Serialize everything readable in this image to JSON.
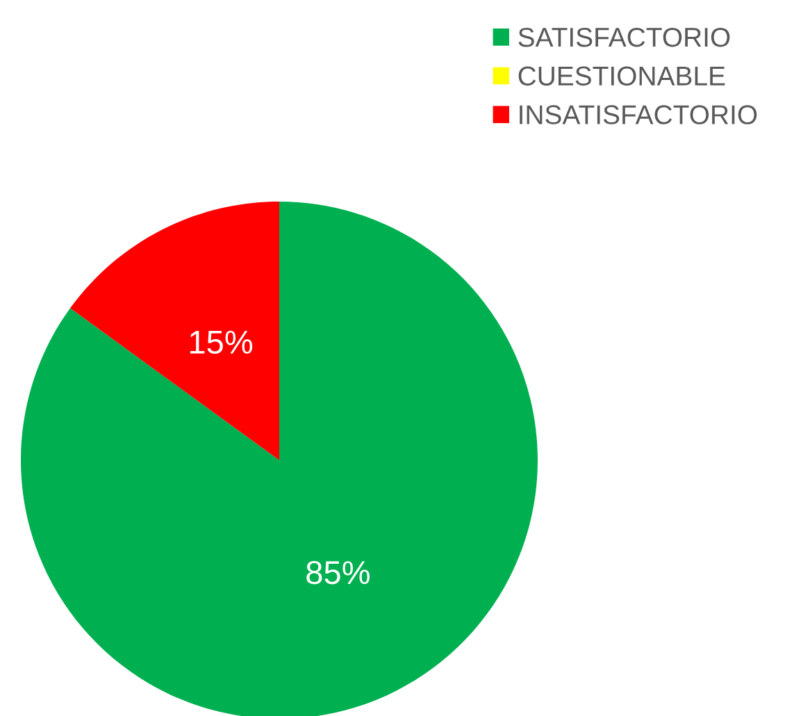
{
  "chart_data": {
    "type": "pie",
    "categories": [
      "SATISFACTORIO",
      "CUESTIONABLE",
      "INSATISFACTORIO"
    ],
    "values": [
      85,
      0,
      15
    ],
    "colors": [
      "#00b050",
      "#ffff00",
      "#ff0000"
    ],
    "value_labels": [
      "85%",
      null,
      "15%"
    ],
    "legend": "top right"
  }
}
